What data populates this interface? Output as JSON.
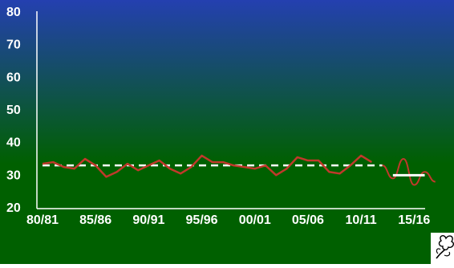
{
  "colors": {
    "bg_top": "#2440b0",
    "bg_bottom": "#006000",
    "series": "#c0392b",
    "baseline_avg": "#ffffff",
    "axis": "#ffffff",
    "text": "#ffffff"
  },
  "icons": {
    "logo": "cotton-boll-icon"
  },
  "chart_data": {
    "type": "line",
    "title": "",
    "xlabel": "",
    "ylabel": "",
    "ylim": [
      20,
      80
    ],
    "yticks": [
      20,
      30,
      40,
      50,
      60,
      70,
      80
    ],
    "xtick_labels": [
      "80/81",
      "85/86",
      "90/91",
      "95/96",
      "00/01",
      "05/06",
      "10/11",
      "15/16"
    ],
    "grid": false,
    "legend": "none",
    "series": [
      {
        "style": "solid",
        "x": [
          "80/81",
          "81/82",
          "82/83",
          "83/84",
          "84/85",
          "85/86",
          "86/87",
          "87/88",
          "88/89",
          "89/90",
          "90/91",
          "91/92",
          "92/93",
          "93/94",
          "94/95",
          "95/96",
          "96/97",
          "97/98",
          "98/99",
          "99/00",
          "00/01",
          "01/02",
          "02/03",
          "03/04",
          "04/05",
          "05/06",
          "06/07",
          "07/08",
          "08/09",
          "09/10",
          "10/11",
          "11/12",
          "12/13"
        ],
        "values": [
          33.5,
          34,
          32.5,
          32,
          35,
          33,
          29.5,
          31,
          33.5,
          31.5,
          33,
          34.5,
          32,
          30.5,
          32.5,
          36,
          34,
          34,
          33,
          32.5,
          32,
          33,
          30,
          32,
          35.5,
          34.5,
          34.5,
          31,
          30.5,
          33,
          36,
          34,
          null
        ]
      },
      {
        "style": "projection",
        "x": [
          "12/13",
          "13/14",
          "14/15",
          "15/16",
          "16/17",
          "17/18"
        ],
        "values": [
          33,
          29,
          35,
          27,
          31,
          28
        ]
      },
      {
        "style": "dashed",
        "x": [
          "80/81",
          "12/13"
        ],
        "values": [
          33,
          33
        ]
      },
      {
        "style": "solid-white",
        "x": [
          "13/14",
          "16/17"
        ],
        "values": [
          30,
          30
        ]
      }
    ]
  }
}
